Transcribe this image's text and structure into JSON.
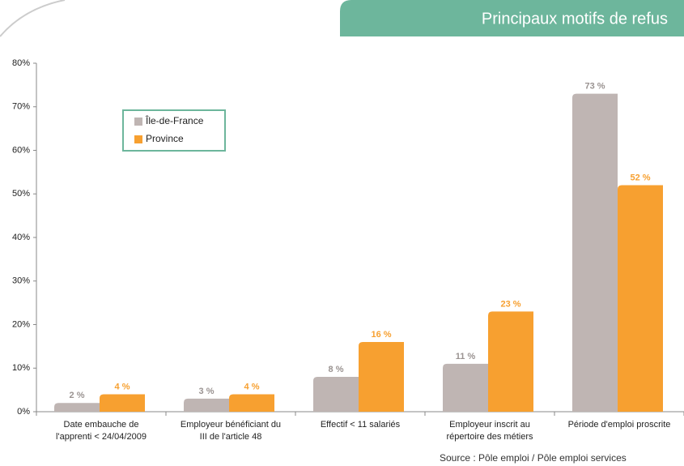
{
  "chart_data": {
    "type": "bar",
    "title": "Principaux motifs de refus",
    "source": "Source : Pôle emploi / Pôle emploi services",
    "categories": [
      [
        "Date embauche de",
        "l'apprenti < 24/04/2009"
      ],
      [
        "Employeur bénéficiant du",
        "III de l'article 48"
      ],
      [
        "Effectif < 11 salariés"
      ],
      [
        "Employeur inscrit au",
        "répertoire des métiers"
      ],
      [
        "Période d'emploi proscrite"
      ]
    ],
    "series": [
      {
        "name": "Île-de-France",
        "color": "#bfb5b3",
        "values": [
          2,
          3,
          8,
          11,
          73
        ],
        "value_labels": [
          "2 %",
          "3 %",
          "8 %",
          "11 %",
          "73 %"
        ]
      },
      {
        "name": "Province",
        "color": "#f7a030",
        "values": [
          4,
          4,
          16,
          23,
          52
        ],
        "value_labels": [
          "4 %",
          "4 %",
          "16 %",
          "23 %",
          "52 %"
        ]
      }
    ],
    "ylim": [
      0,
      80
    ],
    "yticks": [
      {
        "value": 0,
        "label": "0%"
      },
      {
        "value": 10,
        "label": "10%"
      },
      {
        "value": 20,
        "label": "20%"
      },
      {
        "value": 30,
        "label": "30%"
      },
      {
        "value": 40,
        "label": "40%"
      },
      {
        "value": 50,
        "label": "50%"
      },
      {
        "value": 60,
        "label": "60%"
      },
      {
        "value": 70,
        "label": "70%"
      },
      {
        "value": 80,
        "label": "80%"
      }
    ],
    "legend": "upper left"
  }
}
